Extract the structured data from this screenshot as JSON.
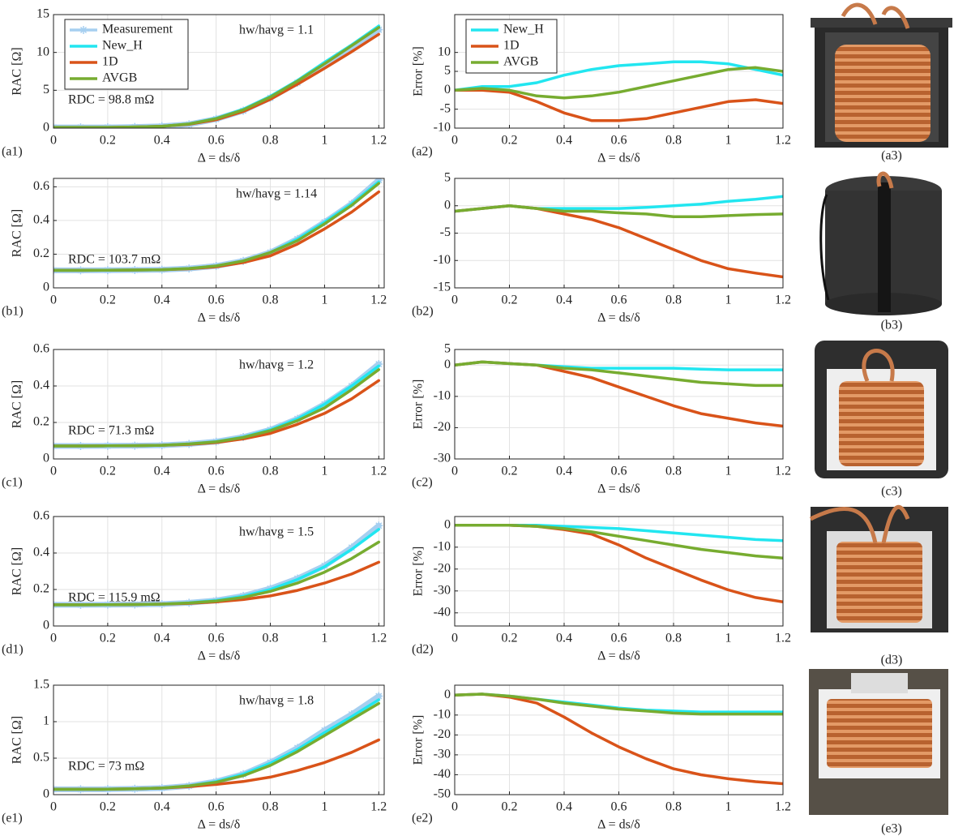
{
  "chart_data": [
    {
      "type": "line",
      "label": "(a1)",
      "xlabel": "Δ = ds/δ",
      "ylabel": "RAC [Ω]",
      "annotation": "hw/havg = 1.1",
      "note": "RDC = 98.8 mΩ",
      "x": [
        0,
        0.1,
        0.2,
        0.3,
        0.4,
        0.5,
        0.6,
        0.7,
        0.8,
        0.9,
        1,
        1.1,
        1.2
      ],
      "series": [
        {
          "name": "Measurement",
          "color": "#a6cff0",
          "marker": "asterisk",
          "values": [
            0.1,
            0.1,
            0.1,
            0.15,
            0.25,
            0.5,
            1.2,
            2.3,
            4,
            6,
            8.3,
            10.6,
            13
          ]
        },
        {
          "name": "New_H",
          "color": "#22e6f0",
          "values": [
            0.1,
            0.1,
            0.1,
            0.15,
            0.25,
            0.55,
            1.3,
            2.5,
            4.2,
            6.3,
            8.7,
            11,
            13.5
          ]
        },
        {
          "name": "1D",
          "color": "#d95319",
          "values": [
            0.1,
            0.1,
            0.1,
            0.15,
            0.25,
            0.5,
            1.1,
            2.2,
            3.8,
            5.8,
            7.9,
            10.1,
            12.4
          ]
        },
        {
          "name": "AVGB",
          "color": "#77ac30",
          "values": [
            0.1,
            0.1,
            0.1,
            0.15,
            0.25,
            0.55,
            1.25,
            2.4,
            4.1,
            6.2,
            8.5,
            10.9,
            13.3
          ]
        }
      ],
      "xlim": [
        0,
        1.22
      ],
      "ylim": [
        0,
        15
      ],
      "xticks": [
        0,
        0.2,
        0.4,
        0.6,
        0.8,
        1,
        1.2
      ],
      "yticks": [
        0,
        5,
        10,
        15
      ],
      "grid": true,
      "legend": "upper left"
    },
    {
      "type": "line",
      "label": "(a2)",
      "xlabel": "Δ = ds/δ",
      "ylabel": "Error [%]",
      "x": [
        0,
        0.1,
        0.2,
        0.3,
        0.4,
        0.5,
        0.6,
        0.7,
        0.8,
        0.9,
        1,
        1.1,
        1.2
      ],
      "series": [
        {
          "name": "New_H",
          "color": "#22e6f0",
          "values": [
            0,
            1,
            1,
            2,
            4,
            5.5,
            6.5,
            7,
            7.5,
            7.5,
            7,
            5.5,
            4
          ]
        },
        {
          "name": "1D",
          "color": "#d95319",
          "values": [
            0,
            0,
            -0.5,
            -3,
            -6,
            -8,
            -8,
            -7.5,
            -6,
            -4.5,
            -3,
            -2.5,
            -3.5
          ]
        },
        {
          "name": "AVGB",
          "color": "#77ac30",
          "values": [
            0,
            0.5,
            0,
            -1.5,
            -2,
            -1.5,
            -0.5,
            1,
            2.5,
            4,
            5.5,
            6,
            5
          ]
        }
      ],
      "xlim": [
        0,
        1.2
      ],
      "ylim": [
        -10,
        20
      ],
      "xticks": [
        0,
        0.2,
        0.4,
        0.6,
        0.8,
        1,
        1.2
      ],
      "yticks": [
        -10,
        -5,
        0,
        5,
        10
      ],
      "grid": true,
      "legend": "upper left"
    },
    {
      "type": "line",
      "label": "(b1)",
      "xlabel": "Δ = ds/δ",
      "ylabel": "RAC [Ω]",
      "annotation": "hw/havg = 1.14",
      "note": "RDC = 103.7 mΩ",
      "x": [
        0,
        0.1,
        0.2,
        0.3,
        0.4,
        0.5,
        0.6,
        0.7,
        0.8,
        0.9,
        1,
        1.1,
        1.2
      ],
      "series": [
        {
          "color": "#a6cff0",
          "marker": "asterisk",
          "values": [
            0.104,
            0.104,
            0.105,
            0.106,
            0.108,
            0.115,
            0.13,
            0.16,
            0.21,
            0.29,
            0.39,
            0.5,
            0.64
          ]
        },
        {
          "color": "#22e6f0",
          "values": [
            0.104,
            0.104,
            0.105,
            0.106,
            0.108,
            0.115,
            0.13,
            0.16,
            0.21,
            0.29,
            0.39,
            0.5,
            0.63
          ]
        },
        {
          "color": "#d95319",
          "values": [
            0.104,
            0.104,
            0.105,
            0.106,
            0.108,
            0.113,
            0.125,
            0.15,
            0.19,
            0.26,
            0.35,
            0.45,
            0.57
          ]
        },
        {
          "color": "#77ac30",
          "values": [
            0.104,
            0.104,
            0.105,
            0.106,
            0.108,
            0.115,
            0.13,
            0.16,
            0.21,
            0.28,
            0.38,
            0.49,
            0.62
          ]
        }
      ],
      "xlim": [
        0,
        1.22
      ],
      "ylim": [
        0,
        0.65
      ],
      "xticks": [
        0,
        0.2,
        0.4,
        0.6,
        0.8,
        1,
        1.2
      ],
      "yticks": [
        0,
        0.2,
        0.4,
        0.6
      ],
      "grid": true
    },
    {
      "type": "line",
      "label": "(b2)",
      "xlabel": "Δ = ds/δ",
      "x": [
        0,
        0.1,
        0.2,
        0.3,
        0.4,
        0.5,
        0.6,
        0.7,
        0.8,
        0.9,
        1,
        1.1,
        1.2
      ],
      "series": [
        {
          "color": "#22e6f0",
          "values": [
            -1,
            -0.5,
            0,
            -0.5,
            -0.5,
            -0.5,
            -0.5,
            -0.3,
            0,
            0.3,
            0.8,
            1.2,
            1.7
          ]
        },
        {
          "color": "#d95319",
          "values": [
            -1,
            -0.5,
            0,
            -0.5,
            -1.5,
            -2.5,
            -4,
            -6,
            -8,
            -10,
            -11.5,
            -12.3,
            -13
          ]
        },
        {
          "color": "#77ac30",
          "values": [
            -1,
            -0.5,
            0,
            -0.5,
            -1,
            -1,
            -1.3,
            -1.5,
            -2,
            -2,
            -1.8,
            -1.6,
            -1.5
          ]
        }
      ],
      "xlim": [
        0,
        1.2
      ],
      "ylim": [
        -15,
        5
      ],
      "xticks": [
        0,
        0.2,
        0.4,
        0.6,
        0.8,
        1,
        1.2
      ],
      "yticks": [
        -15,
        -10,
        -5,
        0,
        5
      ],
      "grid": true
    },
    {
      "type": "line",
      "label": "(c1)",
      "xlabel": "Δ = ds/δ",
      "ylabel": "RAC [Ω]",
      "annotation": "hw/havg = 1.2",
      "note": "RDC = 71.3 mΩ",
      "x": [
        0,
        0.1,
        0.2,
        0.3,
        0.4,
        0.5,
        0.6,
        0.7,
        0.8,
        0.9,
        1,
        1.1,
        1.2
      ],
      "series": [
        {
          "color": "#a6cff0",
          "marker": "asterisk",
          "values": [
            0.071,
            0.071,
            0.072,
            0.073,
            0.075,
            0.082,
            0.095,
            0.12,
            0.16,
            0.22,
            0.3,
            0.4,
            0.52
          ]
        },
        {
          "color": "#22e6f0",
          "values": [
            0.071,
            0.071,
            0.072,
            0.073,
            0.075,
            0.082,
            0.095,
            0.12,
            0.16,
            0.22,
            0.3,
            0.4,
            0.51
          ]
        },
        {
          "color": "#d95319",
          "values": [
            0.071,
            0.071,
            0.072,
            0.073,
            0.075,
            0.08,
            0.09,
            0.11,
            0.14,
            0.19,
            0.25,
            0.33,
            0.43
          ]
        },
        {
          "color": "#77ac30",
          "values": [
            0.071,
            0.071,
            0.072,
            0.073,
            0.075,
            0.082,
            0.094,
            0.118,
            0.155,
            0.21,
            0.28,
            0.38,
            0.49
          ]
        }
      ],
      "xlim": [
        0,
        1.22
      ],
      "ylim": [
        0,
        0.6
      ],
      "xticks": [
        0,
        0.2,
        0.4,
        0.6,
        0.8,
        1,
        1.2
      ],
      "yticks": [
        0,
        0.2,
        0.4,
        0.6
      ],
      "grid": true
    },
    {
      "type": "line",
      "label": "(c2)",
      "xlabel": "Δ = ds/δ",
      "ylabel": "Error [%]",
      "x": [
        0,
        0.1,
        0.2,
        0.3,
        0.4,
        0.5,
        0.6,
        0.7,
        0.8,
        0.9,
        1,
        1.1,
        1.2
      ],
      "series": [
        {
          "color": "#22e6f0",
          "values": [
            0,
            1,
            0.5,
            0,
            -0.5,
            -1,
            -1,
            -1,
            -1,
            -1.3,
            -1.5,
            -1.5,
            -1.5
          ]
        },
        {
          "color": "#d95319",
          "values": [
            0,
            1,
            0.5,
            0,
            -2,
            -4,
            -7,
            -10,
            -13,
            -15.5,
            -17,
            -18.5,
            -19.5
          ]
        },
        {
          "color": "#77ac30",
          "values": [
            0,
            1,
            0.5,
            0,
            -1,
            -1.5,
            -2.5,
            -3.5,
            -4.5,
            -5.5,
            -6,
            -6.5,
            -6.5
          ]
        }
      ],
      "xlim": [
        0,
        1.2
      ],
      "ylim": [
        -30,
        5
      ],
      "xticks": [
        0,
        0.2,
        0.4,
        0.6,
        0.8,
        1,
        1.2
      ],
      "yticks": [
        -30,
        -20,
        -10,
        0,
        5
      ],
      "grid": true
    },
    {
      "type": "line",
      "label": "(d1)",
      "xlabel": "Δ = ds/δ",
      "ylabel": "RAC [Ω]",
      "annotation": "hw/havg = 1.5",
      "note": "RDC = 115.9 mΩ",
      "x": [
        0,
        0.1,
        0.2,
        0.3,
        0.4,
        0.5,
        0.6,
        0.7,
        0.8,
        0.9,
        1,
        1.1,
        1.2
      ],
      "series": [
        {
          "color": "#a6cff0",
          "marker": "asterisk",
          "values": [
            0.116,
            0.116,
            0.117,
            0.118,
            0.12,
            0.127,
            0.14,
            0.165,
            0.205,
            0.26,
            0.33,
            0.43,
            0.55
          ]
        },
        {
          "color": "#22e6f0",
          "values": [
            0.116,
            0.116,
            0.117,
            0.118,
            0.12,
            0.127,
            0.14,
            0.163,
            0.2,
            0.255,
            0.325,
            0.42,
            0.53
          ]
        },
        {
          "color": "#d95319",
          "values": [
            0.116,
            0.116,
            0.117,
            0.118,
            0.12,
            0.124,
            0.132,
            0.145,
            0.165,
            0.195,
            0.235,
            0.285,
            0.35
          ]
        },
        {
          "color": "#77ac30",
          "values": [
            0.116,
            0.116,
            0.117,
            0.118,
            0.12,
            0.126,
            0.137,
            0.157,
            0.19,
            0.235,
            0.295,
            0.37,
            0.46
          ]
        }
      ],
      "xlim": [
        0,
        1.22
      ],
      "ylim": [
        0,
        0.6
      ],
      "xticks": [
        0,
        0.2,
        0.4,
        0.6,
        0.8,
        1,
        1.2
      ],
      "yticks": [
        0,
        0.2,
        0.4,
        0.6
      ],
      "grid": true
    },
    {
      "type": "line",
      "label": "(d2)",
      "xlabel": "Δ = ds/δ",
      "ylabel": "Error [%]",
      "x": [
        0,
        0.1,
        0.2,
        0.3,
        0.4,
        0.5,
        0.6,
        0.7,
        0.8,
        0.9,
        1,
        1.1,
        1.2
      ],
      "series": [
        {
          "color": "#22e6f0",
          "values": [
            0,
            0,
            0,
            0,
            -0.5,
            -1,
            -1.5,
            -2.5,
            -3.5,
            -4.5,
            -5.5,
            -6.5,
            -7
          ]
        },
        {
          "color": "#d95319",
          "values": [
            0,
            0,
            0,
            -0.5,
            -2,
            -4,
            -9,
            -15,
            -20,
            -25,
            -29.5,
            -33,
            -35
          ]
        },
        {
          "color": "#77ac30",
          "values": [
            0,
            0,
            0,
            -0.5,
            -1.5,
            -3,
            -5,
            -7,
            -9,
            -11,
            -12.5,
            -14,
            -15
          ]
        }
      ],
      "xlim": [
        0,
        1.2
      ],
      "ylim": [
        -46,
        4
      ],
      "xticks": [
        0,
        0.2,
        0.4,
        0.6,
        0.8,
        1,
        1.2
      ],
      "yticks": [
        -40,
        -30,
        -20,
        -10,
        0
      ],
      "grid": true
    },
    {
      "type": "line",
      "label": "(e1)",
      "xlabel": "Δ = ds/δ",
      "ylabel": "RAC [Ω]",
      "annotation": "hw/havg = 1.8",
      "note": "RDC = 73 mΩ",
      "x": [
        0,
        0.1,
        0.2,
        0.3,
        0.4,
        0.5,
        0.6,
        0.7,
        0.8,
        0.9,
        1,
        1.1,
        1.2
      ],
      "series": [
        {
          "color": "#a6cff0",
          "marker": "asterisk",
          "values": [
            0.073,
            0.073,
            0.075,
            0.08,
            0.09,
            0.12,
            0.18,
            0.28,
            0.44,
            0.64,
            0.88,
            1.1,
            1.35
          ]
        },
        {
          "color": "#22e6f0",
          "values": [
            0.073,
            0.073,
            0.075,
            0.08,
            0.09,
            0.12,
            0.18,
            0.28,
            0.43,
            0.62,
            0.85,
            1.07,
            1.3
          ]
        },
        {
          "color": "#d95319",
          "values": [
            0.073,
            0.073,
            0.075,
            0.08,
            0.09,
            0.11,
            0.14,
            0.18,
            0.24,
            0.33,
            0.44,
            0.58,
            0.75
          ]
        },
        {
          "color": "#77ac30",
          "values": [
            0.073,
            0.073,
            0.075,
            0.08,
            0.09,
            0.12,
            0.17,
            0.26,
            0.4,
            0.59,
            0.81,
            1.03,
            1.25
          ]
        }
      ],
      "xlim": [
        0,
        1.22
      ],
      "ylim": [
        0,
        1.5
      ],
      "xticks": [
        0,
        0.2,
        0.4,
        0.6,
        0.8,
        1,
        1.2
      ],
      "yticks": [
        0,
        0.5,
        1,
        1.5
      ],
      "grid": true
    },
    {
      "type": "line",
      "label": "(e2)",
      "xlabel": "Δ = ds/δ",
      "ylabel": "Error [%]",
      "x": [
        0,
        0.1,
        0.2,
        0.3,
        0.4,
        0.5,
        0.6,
        0.7,
        0.8,
        0.9,
        1,
        1.1,
        1.2
      ],
      "series": [
        {
          "color": "#22e6f0",
          "values": [
            0,
            0.5,
            -0.5,
            -2,
            -3.5,
            -5,
            -6.5,
            -7.5,
            -8,
            -8.5,
            -8.5,
            -8.5,
            -8.5
          ]
        },
        {
          "color": "#d95319",
          "values": [
            0,
            0.5,
            -1,
            -4,
            -11,
            -19,
            -26,
            -32,
            -37,
            -40,
            -42,
            -43.5,
            -44.5
          ]
        },
        {
          "color": "#77ac30",
          "values": [
            0,
            0.5,
            -0.5,
            -2,
            -4,
            -5.5,
            -7,
            -8,
            -9,
            -9.5,
            -9.5,
            -9.5,
            -9.5
          ]
        }
      ],
      "xlim": [
        0,
        1.2
      ],
      "ylim": [
        -50,
        5
      ],
      "xticks": [
        0,
        0.2,
        0.4,
        0.6,
        0.8,
        1,
        1.2
      ],
      "yticks": [
        -50,
        -40,
        -30,
        -20,
        -10,
        0
      ],
      "grid": true
    }
  ],
  "photos": [
    {
      "label": "(a3)"
    },
    {
      "label": "(b3)"
    },
    {
      "label": "(c3)"
    },
    {
      "label": "(d3)"
    },
    {
      "label": "(e3)"
    }
  ]
}
